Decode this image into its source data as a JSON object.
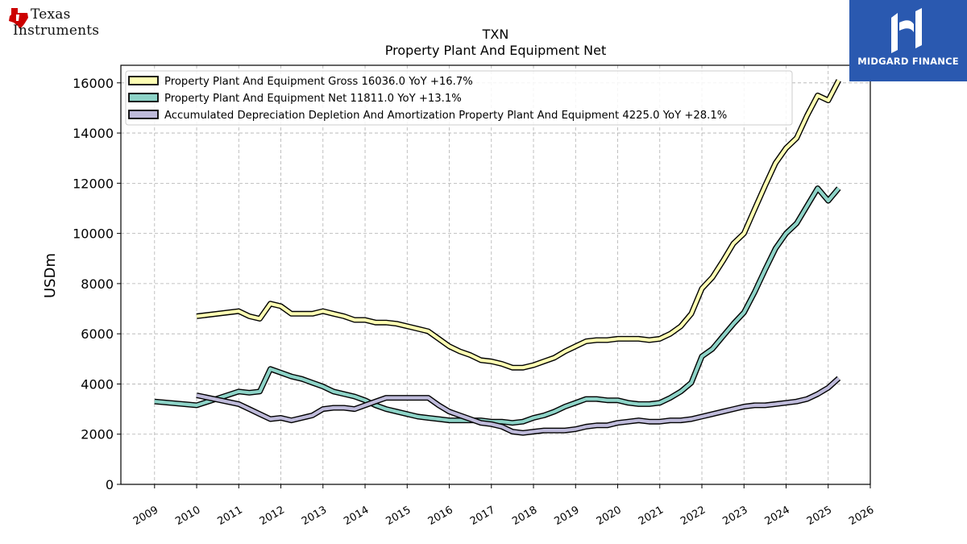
{
  "logos": {
    "ti_line1": "Texas",
    "ti_line2": "Instruments",
    "mf_text": "MIDGARD FINANCE"
  },
  "chart_data": {
    "type": "line",
    "title": "TXN",
    "subtitle": "Property Plant And Equipment Net",
    "ylabel": "USDm",
    "xlabel": "",
    "xlim": [
      2008.2,
      2026.0
    ],
    "ylim": [
      0,
      16700
    ],
    "yticks": [
      0,
      2000,
      4000,
      6000,
      8000,
      10000,
      12000,
      14000,
      16000
    ],
    "xticks": [
      2009,
      2010,
      2011,
      2012,
      2013,
      2014,
      2015,
      2016,
      2017,
      2018,
      2019,
      2020,
      2021,
      2022,
      2023,
      2024,
      2025,
      2026
    ],
    "grid": true,
    "legend_position": "top-left",
    "series": [
      {
        "name": "Property Plant And Equipment Gross  16036.0 YoY +16.7%",
        "color": "#ffffb3",
        "x": [
          2010.0,
          2011.0,
          2011.25,
          2011.5,
          2011.75,
          2012.0,
          2012.25,
          2012.5,
          2012.75,
          2013.0,
          2013.25,
          2013.5,
          2013.75,
          2014.0,
          2014.25,
          2014.5,
          2014.75,
          2015.0,
          2015.25,
          2015.5,
          2015.75,
          2016.0,
          2016.25,
          2016.5,
          2016.75,
          2017.0,
          2017.25,
          2017.5,
          2017.75,
          2018.0,
          2018.25,
          2018.5,
          2018.75,
          2019.0,
          2019.25,
          2019.5,
          2019.75,
          2020.0,
          2020.25,
          2020.5,
          2020.75,
          2021.0,
          2021.25,
          2021.5,
          2021.75,
          2022.0,
          2022.25,
          2022.5,
          2022.75,
          2023.0,
          2023.25,
          2023.5,
          2023.75,
          2024.0,
          2024.25,
          2024.5,
          2024.75,
          2025.0,
          2025.25
        ],
        "values": [
          6700,
          6900,
          6700,
          6600,
          7200,
          7100,
          6800,
          6800,
          6800,
          6900,
          6800,
          6700,
          6550,
          6550,
          6450,
          6450,
          6400,
          6300,
          6200,
          6100,
          5800,
          5500,
          5300,
          5150,
          4950,
          4900,
          4800,
          4650,
          4650,
          4750,
          4900,
          5050,
          5300,
          5500,
          5700,
          5750,
          5750,
          5800,
          5800,
          5800,
          5750,
          5800,
          6000,
          6300,
          6800,
          7800,
          8250,
          8900,
          9600,
          10000,
          10950,
          11900,
          12800,
          13400,
          13800,
          14700,
          15500,
          15300,
          16100
        ]
      },
      {
        "name": "Property Plant And Equipment Net  11811.0 YoY +13.1%",
        "color": "#8dd3c7",
        "x": [
          2009.0,
          2010.0,
          2011.0,
          2011.25,
          2011.5,
          2011.75,
          2012.0,
          2012.25,
          2012.5,
          2012.75,
          2013.0,
          2013.25,
          2013.5,
          2013.75,
          2014.0,
          2014.25,
          2014.5,
          2014.75,
          2015.0,
          2015.25,
          2015.5,
          2015.75,
          2016.0,
          2016.25,
          2016.5,
          2016.75,
          2017.0,
          2017.25,
          2017.5,
          2017.75,
          2018.0,
          2018.25,
          2018.5,
          2018.75,
          2019.0,
          2019.25,
          2019.5,
          2019.75,
          2020.0,
          2020.25,
          2020.5,
          2020.75,
          2021.0,
          2021.25,
          2021.5,
          2021.75,
          2022.0,
          2022.25,
          2022.5,
          2022.75,
          2023.0,
          2023.25,
          2023.5,
          2023.75,
          2024.0,
          2024.25,
          2024.5,
          2024.75,
          2025.0,
          2025.25
        ],
        "values": [
          3300,
          3150,
          3700,
          3650,
          3700,
          4600,
          4450,
          4300,
          4200,
          4050,
          3900,
          3700,
          3600,
          3500,
          3350,
          3150,
          3000,
          2900,
          2800,
          2700,
          2650,
          2600,
          2550,
          2550,
          2550,
          2550,
          2500,
          2500,
          2450,
          2500,
          2650,
          2750,
          2900,
          3100,
          3250,
          3400,
          3400,
          3350,
          3350,
          3250,
          3200,
          3200,
          3250,
          3450,
          3700,
          4050,
          5100,
          5400,
          5900,
          6400,
          6850,
          7650,
          8550,
          9400,
          10000,
          10400,
          11100,
          11800,
          11300,
          11800
        ]
      },
      {
        "name": "Accumulated Depreciation Depletion And Amortization Property Plant And Equipment  4225.0 YoY +28.1%",
        "color": "#bebada",
        "x": [
          2010.0,
          2011.0,
          2011.25,
          2011.5,
          2011.75,
          2012.0,
          2012.25,
          2012.5,
          2012.75,
          2013.0,
          2013.25,
          2013.5,
          2013.75,
          2014.0,
          2014.25,
          2014.5,
          2014.75,
          2015.0,
          2015.25,
          2015.5,
          2015.75,
          2016.0,
          2016.25,
          2016.5,
          2016.75,
          2017.0,
          2017.25,
          2017.5,
          2017.75,
          2018.0,
          2018.25,
          2018.5,
          2018.75,
          2019.0,
          2019.25,
          2019.5,
          2019.75,
          2020.0,
          2020.25,
          2020.5,
          2020.75,
          2021.0,
          2021.25,
          2021.5,
          2021.75,
          2022.0,
          2022.25,
          2022.5,
          2022.75,
          2023.0,
          2023.25,
          2023.5,
          2023.75,
          2024.0,
          2024.25,
          2024.5,
          2024.75,
          2025.0,
          2025.25
        ],
        "values": [
          3550,
          3200,
          3000,
          2800,
          2600,
          2650,
          2550,
          2650,
          2750,
          3000,
          3050,
          3050,
          3000,
          3150,
          3300,
          3450,
          3450,
          3450,
          3450,
          3450,
          3150,
          2900,
          2750,
          2600,
          2450,
          2400,
          2300,
          2100,
          2050,
          2100,
          2150,
          2150,
          2150,
          2200,
          2300,
          2350,
          2350,
          2450,
          2500,
          2550,
          2500,
          2500,
          2550,
          2550,
          2600,
          2700,
          2800,
          2900,
          3000,
          3100,
          3150,
          3150,
          3200,
          3250,
          3300,
          3400,
          3600,
          3850,
          4225
        ]
      }
    ]
  }
}
